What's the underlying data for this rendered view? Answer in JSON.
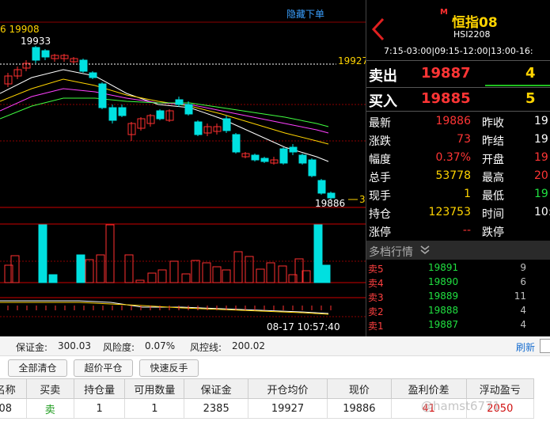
{
  "chart": {
    "hide_orders_link": "隐藏下单",
    "top_left_label": "6 19908",
    "high_label": "19933",
    "dashed_price_label": "19927",
    "last_price_label": "19886",
    "right_marker": "3",
    "datetime": "08-17 10:57:40",
    "colors": {
      "up": "#ff3030",
      "down": "#00e0e0",
      "ma": [
        "#ffffff",
        "#ffd400",
        "#ff40ff",
        "#40ff40"
      ]
    }
  },
  "quote": {
    "marker": "M",
    "title": "恒指08",
    "code": "HSI2208",
    "hours": "7:15-03:00|09:15-12:00|13:00-16:",
    "sell": {
      "label": "卖出",
      "price": "19887",
      "volume": "4"
    },
    "buy": {
      "label": "买入",
      "price": "19885",
      "volume": "5"
    },
    "stats_left": [
      {
        "label": "最新",
        "value": "19886",
        "color": "#ff3535"
      },
      {
        "label": "涨跌",
        "value": "73",
        "color": "#ff3535"
      },
      {
        "label": "幅度",
        "value": "0.37%",
        "color": "#ff3535"
      },
      {
        "label": "总手",
        "value": "53778",
        "color": "#ffd400"
      },
      {
        "label": "现手",
        "value": "1",
        "color": "#ffd400"
      },
      {
        "label": "持仓",
        "value": "123753",
        "color": "#ffd400"
      },
      {
        "label": "涨停",
        "value": "--",
        "color": "#ff3535"
      }
    ],
    "stats_right": [
      {
        "label": "昨收",
        "value": "19",
        "color": "#ffffff"
      },
      {
        "label": "昨结",
        "value": "19",
        "color": "#ffffff"
      },
      {
        "label": "开盘",
        "value": "19",
        "color": "#ff3535"
      },
      {
        "label": "最高",
        "value": "20",
        "color": "#ff3535"
      },
      {
        "label": "最低",
        "value": "19",
        "color": "#20e040"
      },
      {
        "label": "时间",
        "value": "10:5",
        "color": "#ffffff"
      },
      {
        "label": "跌停",
        "value": "",
        "color": "#20e040"
      }
    ],
    "depth_title": "多档行情",
    "depth": [
      {
        "label": "卖5",
        "price": "19891",
        "volume": "9"
      },
      {
        "label": "卖4",
        "price": "19890",
        "volume": "6"
      },
      {
        "label": "卖3",
        "price": "19889",
        "volume": "11"
      },
      {
        "label": "卖2",
        "price": "19888",
        "volume": "4"
      },
      {
        "label": "卖1",
        "price": "19887",
        "volume": "4"
      }
    ]
  },
  "account": {
    "margin_label": "保证金:",
    "margin_value": "300.03",
    "risk_label": "风险度:",
    "risk_value": "0.07%",
    "control_label": "风控线:",
    "control_value": "200.02",
    "refresh": "刷新"
  },
  "actions": {
    "close_all": "全部清仓",
    "over_price_close": "超价平仓",
    "quick_reverse": "快速反手"
  },
  "positions": {
    "headers": [
      "名称",
      "买卖",
      "持仓量",
      "可用数量",
      "保证金",
      "开仓均价",
      "现价",
      "盈利价差",
      "浮动盈亏"
    ],
    "rows": [
      [
        "08",
        "卖",
        "1",
        "1",
        "2385",
        "19927",
        "19886",
        "41",
        "2050"
      ]
    ]
  },
  "watermark": "@hamst6771"
}
